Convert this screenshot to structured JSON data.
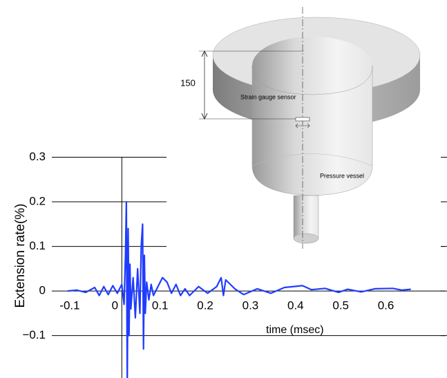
{
  "chart_data": {
    "type": "line",
    "y_label": "Extension rate(%)",
    "x_label": "time (msec)",
    "annotations": [
      "150",
      "Strain gauge sensor",
      "Pressure vessel"
    ],
    "xlim": [
      -0.155,
      0.72
    ],
    "ylim": [
      -0.195,
      0.3
    ],
    "xticks": [
      -0.1,
      0,
      0.1,
      0.2,
      0.3,
      0.4,
      0.5,
      0.6
    ],
    "yticks": [
      0.3,
      0.2,
      0.1,
      0,
      {
        "value": -0.1,
        "label": "−0.1"
      }
    ],
    "color": "#1f3cff",
    "x": [
      -0.12,
      -0.1,
      -0.08,
      -0.06,
      -0.05,
      -0.04,
      -0.03,
      -0.02,
      -0.01,
      0,
      0.005,
      0.008,
      0.01,
      0.012,
      0.014,
      0.016,
      0.018,
      0.02,
      0.025,
      0.03,
      0.035,
      0.04,
      0.043,
      0.046,
      0.048,
      0.05,
      0.052,
      0.055,
      0.06,
      0.065,
      0.07,
      0.08,
      0.09,
      0.1,
      0.11,
      0.12,
      0.13,
      0.14,
      0.15,
      0.17,
      0.19,
      0.21,
      0.22,
      0.225,
      0.23,
      0.25,
      0.27,
      0.3,
      0.33,
      0.36,
      0.4,
      0.42,
      0.45,
      0.48,
      0.5,
      0.53,
      0.56,
      0.6,
      0.62,
      0.64
    ],
    "values": [
      0,
      0.002,
      -0.003,
      0.008,
      -0.01,
      0.01,
      -0.008,
      0.012,
      -0.005,
      0.015,
      -0.03,
      0.08,
      0.2,
      -0.22,
      0.14,
      -0.1,
      0.06,
      -0.04,
      0.03,
      -0.06,
      0.05,
      -0.05,
      0.1,
      0.15,
      -0.13,
      0.08,
      -0.05,
      0.02,
      -0.02,
      0.015,
      -0.01,
      0.01,
      0.03,
      0.02,
      -0.005,
      0.015,
      -0.01,
      0.005,
      -0.01,
      0.01,
      -0.005,
      0.01,
      0.03,
      -0.01,
      0.025,
      0.005,
      -0.008,
      0.005,
      -0.005,
      0.008,
      0.012,
      0.003,
      0.006,
      -0.003,
      0.004,
      -0.002,
      0.005,
      0.006,
      0.002,
      0.004
    ]
  }
}
